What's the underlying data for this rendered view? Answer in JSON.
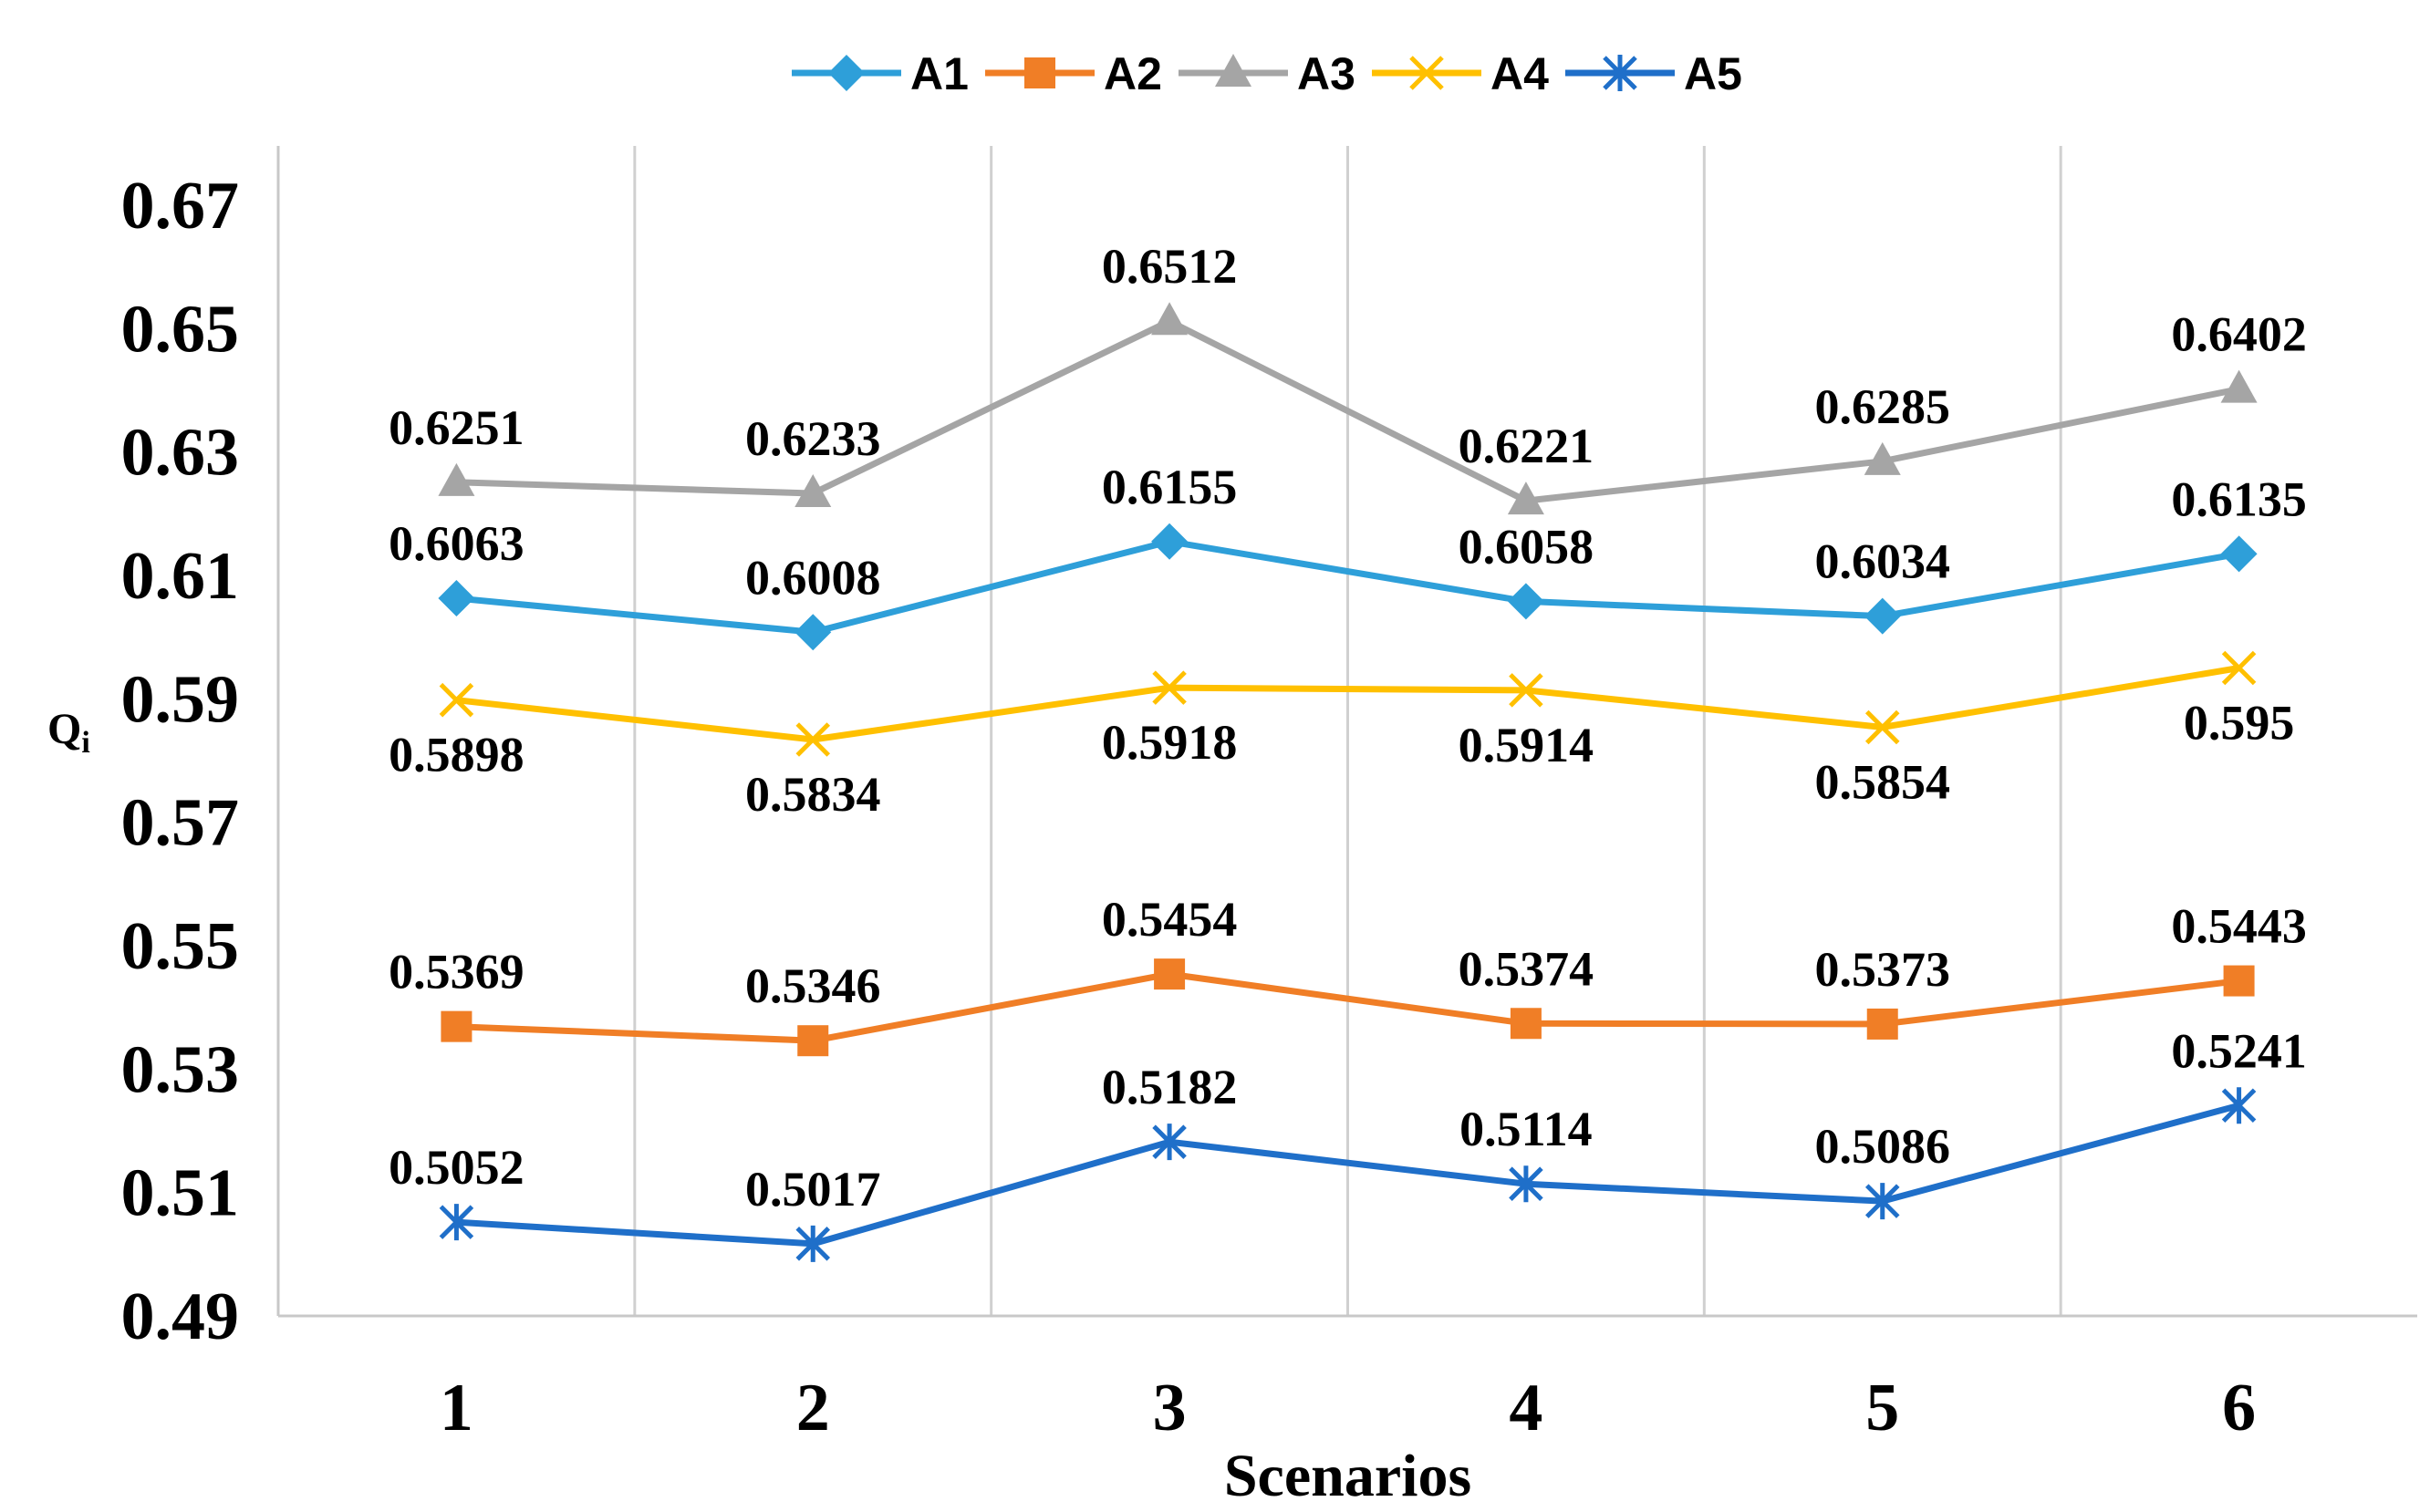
{
  "chart_data": {
    "type": "line",
    "title": "",
    "xlabel": "Scenarios",
    "ylabel": "Q",
    "ylabel_sub": "i",
    "categories": [
      "1",
      "2",
      "3",
      "4",
      "5",
      "6"
    ],
    "ylim": [
      0.49,
      0.67
    ],
    "yticks": [
      0.49,
      0.51,
      0.53,
      0.55,
      0.57,
      0.59,
      0.61,
      0.63,
      0.65,
      0.67
    ],
    "ytick_labels": [
      "0.49",
      "0.51",
      "0.53",
      "0.55",
      "0.57",
      "0.59",
      "0.61",
      "0.63",
      "0.65",
      "0.67"
    ],
    "grid": "vertical",
    "legend_position": "top",
    "series": [
      {
        "name": "A1",
        "color": "#2E9FD9",
        "marker": "diamond",
        "label_pos": "above",
        "values": [
          0.6063,
          0.6008,
          0.6155,
          0.6058,
          0.6034,
          0.6135
        ],
        "labels": [
          "0.6063",
          "0.6008",
          "0.6155",
          "0.6058",
          "0.6034",
          "0.6135"
        ]
      },
      {
        "name": "A2",
        "color": "#F07E26",
        "marker": "square",
        "label_pos": "above",
        "values": [
          0.5369,
          0.5346,
          0.5454,
          0.5374,
          0.5373,
          0.5443
        ],
        "labels": [
          "0.5369",
          "0.5346",
          "0.5454",
          "0.5374",
          "0.5373",
          "0.5443"
        ]
      },
      {
        "name": "A3",
        "color": "#A5A5A5",
        "marker": "triangle",
        "label_pos": "above",
        "values": [
          0.6251,
          0.6233,
          0.6512,
          0.6221,
          0.6285,
          0.6402
        ],
        "labels": [
          "0.6251",
          "0.6233",
          "0.6512",
          "0.6221",
          "0.6285",
          "0.6402"
        ]
      },
      {
        "name": "A4",
        "color": "#FFC000",
        "marker": "x",
        "label_pos": "below",
        "values": [
          0.5898,
          0.5834,
          0.5918,
          0.5914,
          0.5854,
          0.595
        ],
        "labels": [
          "0.5898",
          "0.5834",
          "0.5918",
          "0.5914",
          "0.5854",
          "0.595"
        ]
      },
      {
        "name": "A5",
        "color": "#1F6FC9",
        "marker": "star",
        "label_pos": "above",
        "values": [
          0.5052,
          0.5017,
          0.5182,
          0.5114,
          0.5086,
          0.5241
        ],
        "labels": [
          "0.5052",
          "0.5017",
          "0.5182",
          "0.5114",
          "0.5086",
          "0.5241"
        ]
      }
    ]
  }
}
